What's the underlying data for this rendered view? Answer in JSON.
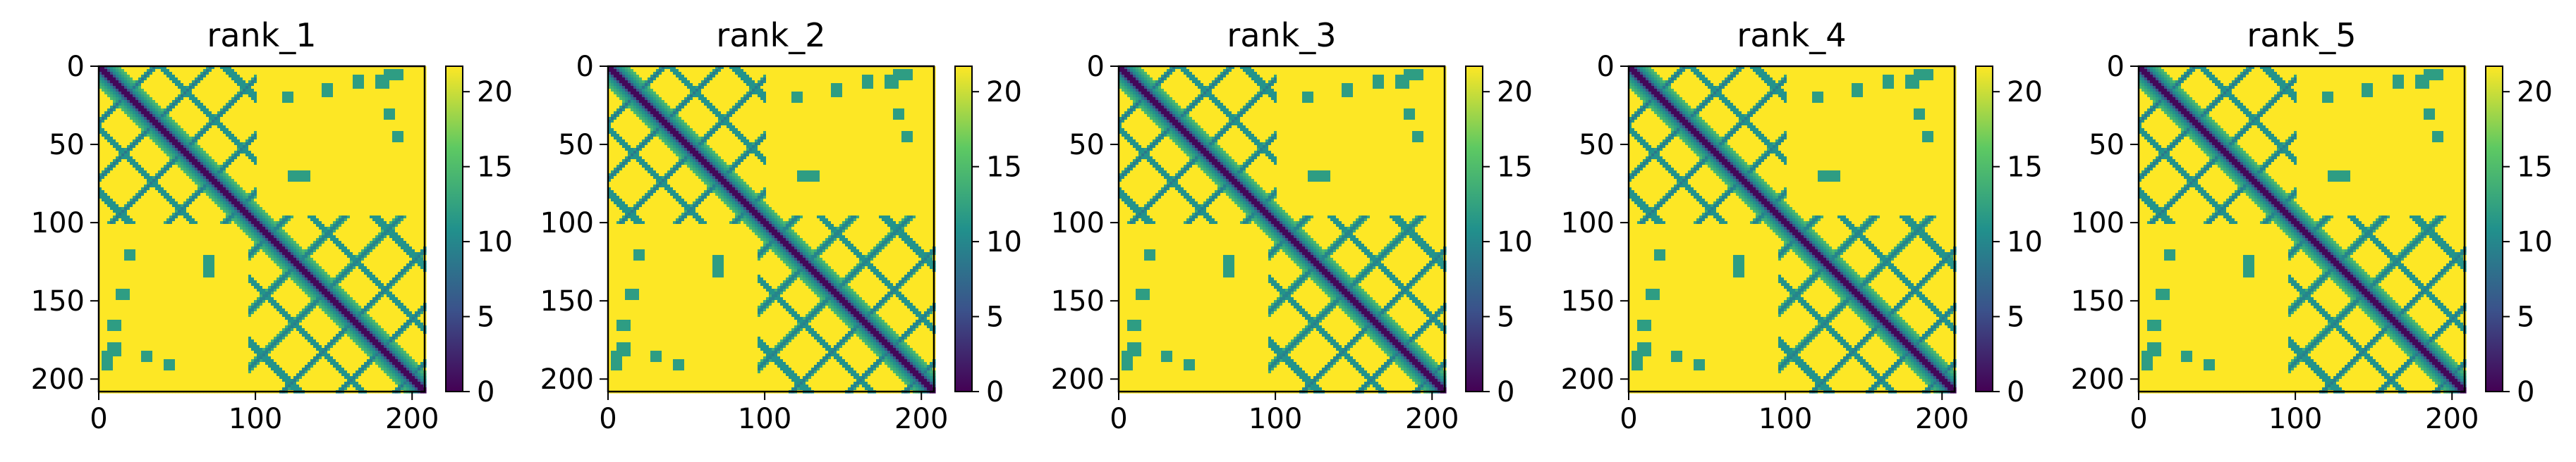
{
  "figure": {
    "colormap": "viridis",
    "colormap_stops": [
      "#440154",
      "#3b528b",
      "#21918c",
      "#5ec962",
      "#fde725"
    ]
  },
  "chart_data": [
    {
      "type": "heatmap",
      "title": "rank_1",
      "xlim": [
        0,
        208
      ],
      "ylim": [
        208,
        0
      ],
      "x_ticks": [
        "0",
        "100",
        "200"
      ],
      "y_ticks": [
        "0",
        "50",
        "100",
        "150",
        "200"
      ],
      "colorbar": {
        "range": [
          0,
          21.7
        ],
        "ticks": [
          "0",
          "5",
          "10",
          "15",
          "20"
        ]
      },
      "grid": false
    },
    {
      "type": "heatmap",
      "title": "rank_2",
      "xlim": [
        0,
        208
      ],
      "ylim": [
        208,
        0
      ],
      "x_ticks": [
        "0",
        "100",
        "200"
      ],
      "y_ticks": [
        "0",
        "50",
        "100",
        "150",
        "200"
      ],
      "colorbar": {
        "range": [
          0,
          21.7
        ],
        "ticks": [
          "0",
          "5",
          "10",
          "15",
          "20"
        ]
      },
      "grid": false
    },
    {
      "type": "heatmap",
      "title": "rank_3",
      "xlim": [
        0,
        208
      ],
      "ylim": [
        208,
        0
      ],
      "x_ticks": [
        "0",
        "100",
        "200"
      ],
      "y_ticks": [
        "0",
        "50",
        "100",
        "150",
        "200"
      ],
      "colorbar": {
        "range": [
          0,
          21.7
        ],
        "ticks": [
          "0",
          "5",
          "10",
          "15",
          "20"
        ]
      },
      "grid": false
    },
    {
      "type": "heatmap",
      "title": "rank_4",
      "xlim": [
        0,
        208
      ],
      "ylim": [
        208,
        0
      ],
      "x_ticks": [
        "0",
        "100",
        "200"
      ],
      "y_ticks": [
        "0",
        "50",
        "100",
        "150",
        "200"
      ],
      "colorbar": {
        "range": [
          0,
          21.7
        ],
        "ticks": [
          "0",
          "5",
          "10",
          "15",
          "20"
        ]
      },
      "grid": false
    },
    {
      "type": "heatmap",
      "title": "rank_5",
      "xlim": [
        0,
        208
      ],
      "ylim": [
        208,
        0
      ],
      "x_ticks": [
        "0",
        "100",
        "200"
      ],
      "y_ticks": [
        "0",
        "50",
        "100",
        "150",
        "200"
      ],
      "colorbar": {
        "range": [
          0,
          21.7
        ],
        "ticks": [
          "0",
          "5",
          "10",
          "15",
          "20"
        ]
      },
      "grid": false
    }
  ]
}
